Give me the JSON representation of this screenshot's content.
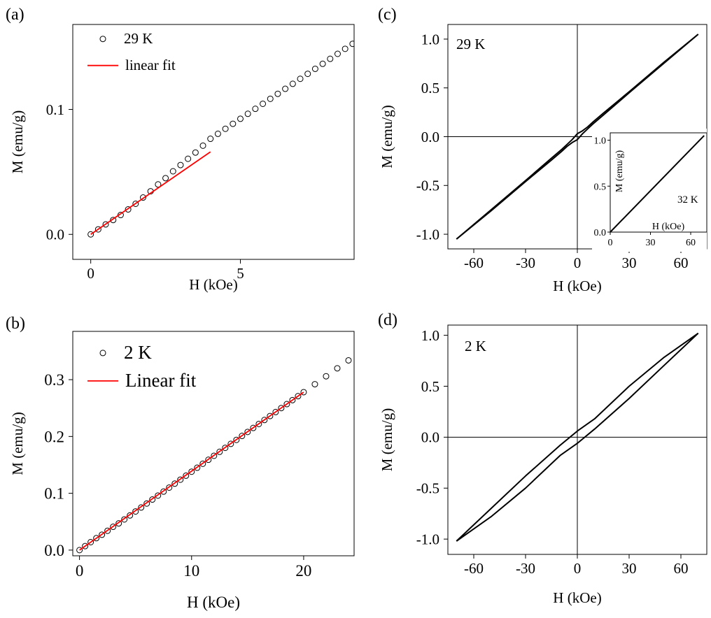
{
  "chart_data": [
    {
      "panel": "(a)",
      "type": "scatter",
      "xlabel": "H (kOe)",
      "ylabel": "M (emu/g)",
      "xlim": [
        -0.6,
        8.8
      ],
      "ylim": [
        -0.02,
        0.168
      ],
      "xticks": [
        0,
        5
      ],
      "yticks": [
        0.0,
        0.1
      ],
      "ytick_labels": [
        "0.0",
        "0.1"
      ],
      "legend_position": "top-left",
      "series": [
        {
          "name": "29 K",
          "kind": "markers",
          "marker": "open-circle",
          "color": "#000000",
          "x": [
            0.0,
            0.25,
            0.5,
            0.75,
            1.0,
            1.25,
            1.5,
            1.75,
            2.0,
            2.25,
            2.5,
            2.75,
            3.0,
            3.25,
            3.5,
            3.75,
            4.0,
            4.25,
            4.5,
            4.75,
            5.0,
            5.25,
            5.5,
            5.75,
            6.0,
            6.25,
            6.5,
            6.75,
            7.0,
            7.25,
            7.5,
            7.75,
            8.0,
            8.25,
            8.5,
            8.75
          ],
          "y": [
            0.0,
            0.004,
            0.008,
            0.0115,
            0.0155,
            0.02,
            0.0245,
            0.0295,
            0.0345,
            0.04,
            0.045,
            0.0505,
            0.0555,
            0.0605,
            0.0655,
            0.071,
            0.0765,
            0.0805,
            0.0845,
            0.0885,
            0.0925,
            0.0965,
            0.1005,
            0.1045,
            0.1085,
            0.1125,
            0.1165,
            0.1205,
            0.1245,
            0.1285,
            0.1325,
            0.1365,
            0.1405,
            0.1445,
            0.1485,
            0.1525
          ]
        },
        {
          "name": "linear fit",
          "kind": "line",
          "color": "#ff0000",
          "x": [
            0.0,
            4.0
          ],
          "y": [
            0.0,
            0.066
          ]
        }
      ]
    },
    {
      "panel": "(b)",
      "type": "scatter",
      "xlabel": "H (kOe)",
      "ylabel": "M (emu/g)",
      "xlim": [
        -0.6,
        24.5
      ],
      "ylim": [
        -0.01,
        0.385
      ],
      "xticks": [
        0,
        10,
        20
      ],
      "yticks": [
        0.0,
        0.1,
        0.2,
        0.3
      ],
      "ytick_labels": [
        "0.0",
        "0.1",
        "0.2",
        "0.3"
      ],
      "legend_position": "top-left",
      "series": [
        {
          "name": "2 K",
          "kind": "markers",
          "marker": "open-circle",
          "color": "#000000",
          "x": [
            0.0,
            0.5,
            1.0,
            1.5,
            2.0,
            2.5,
            3.0,
            3.5,
            4.0,
            4.5,
            5.0,
            5.5,
            6.0,
            6.5,
            7.0,
            7.5,
            8.0,
            8.5,
            9.0,
            9.5,
            10.0,
            10.5,
            11.0,
            11.5,
            12.0,
            12.5,
            13.0,
            13.5,
            14.0,
            14.5,
            15.0,
            15.5,
            16.0,
            16.5,
            17.0,
            17.5,
            18.0,
            18.5,
            19.0,
            19.5,
            20.0,
            21.0,
            22.0,
            23.0,
            24.0
          ],
          "y": [
            0.0,
            0.007,
            0.014,
            0.021,
            0.027,
            0.034,
            0.041,
            0.047,
            0.054,
            0.061,
            0.068,
            0.075,
            0.082,
            0.089,
            0.096,
            0.103,
            0.11,
            0.117,
            0.124,
            0.131,
            0.138,
            0.145,
            0.152,
            0.159,
            0.166,
            0.173,
            0.18,
            0.187,
            0.194,
            0.201,
            0.208,
            0.215,
            0.222,
            0.229,
            0.236,
            0.243,
            0.25,
            0.257,
            0.264,
            0.271,
            0.278,
            0.292,
            0.306,
            0.32,
            0.334
          ]
        },
        {
          "name": "Linear fit",
          "kind": "line",
          "color": "#ff0000",
          "x": [
            0.0,
            20.0
          ],
          "y": [
            0.0,
            0.278
          ]
        }
      ]
    },
    {
      "panel": "(c)",
      "type": "line",
      "xlabel": "H (kOe)",
      "ylabel": "M (emu/g)",
      "xlim": [
        -75,
        75
      ],
      "ylim": [
        -1.15,
        1.15
      ],
      "xticks": [
        -60,
        -30,
        0,
        30,
        60
      ],
      "yticks": [
        -1.0,
        -0.5,
        0.0,
        0.5,
        1.0
      ],
      "ytick_labels": [
        "-1.0",
        "-0.5",
        "0.0",
        "0.5",
        "1.0"
      ],
      "annotation": "29 K",
      "zero_lines": true,
      "series": [
        {
          "kind": "line",
          "color": "#000000",
          "x": [
            -70,
            -50,
            -30,
            -15,
            -9,
            -6,
            -3,
            0,
            3,
            6,
            9,
            15,
            30,
            50,
            70
          ],
          "y": [
            -1.05,
            -0.75,
            -0.45,
            -0.22,
            -0.13,
            -0.08,
            -0.03,
            0.03,
            0.06,
            0.1,
            0.15,
            0.24,
            0.46,
            0.76,
            1.05
          ]
        },
        {
          "kind": "line",
          "color": "#000000",
          "x": [
            70,
            50,
            30,
            15,
            9,
            6,
            3,
            0,
            -3,
            -6,
            -9,
            -15,
            -30,
            -50,
            -70
          ],
          "y": [
            1.05,
            0.75,
            0.45,
            0.22,
            0.13,
            0.08,
            0.03,
            -0.03,
            -0.06,
            -0.1,
            -0.15,
            -0.24,
            -0.46,
            -0.76,
            -1.05
          ]
        }
      ],
      "inset": {
        "xlabel": "H (kOe)",
        "ylabel": "M (emu/g)",
        "xlim": [
          0,
          72
        ],
        "ylim": [
          0,
          1.08
        ],
        "xticks": [
          0,
          30,
          60
        ],
        "yticks": [
          0.0,
          0.5,
          1.0
        ],
        "ytick_labels": [
          "0.0",
          "0.5",
          "1.0"
        ],
        "annotation": "32 K",
        "series": [
          {
            "kind": "line",
            "color": "#000000",
            "x": [
              0,
              70
            ],
            "y": [
              0.0,
              1.05
            ]
          }
        ]
      }
    },
    {
      "panel": "(d)",
      "type": "line",
      "xlabel": "H (kOe)",
      "ylabel": "M (emu/g)",
      "xlim": [
        -75,
        75
      ],
      "ylim": [
        -1.15,
        1.1
      ],
      "xticks": [
        -60,
        -30,
        0,
        30,
        60
      ],
      "yticks": [
        -1.0,
        -0.5,
        0.0,
        0.5,
        1.0
      ],
      "ytick_labels": [
        "-1.0",
        "-0.5",
        "0.0",
        "0.5",
        "1.0"
      ],
      "annotation": "2 K",
      "zero_lines": true,
      "series": [
        {
          "kind": "line",
          "color": "#000000",
          "x": [
            -70,
            -50,
            -30,
            -10,
            0,
            10,
            30,
            50,
            70
          ],
          "y": [
            -1.02,
            -0.78,
            -0.5,
            -0.18,
            -0.06,
            0.08,
            0.38,
            0.7,
            1.02
          ]
        },
        {
          "kind": "line",
          "color": "#000000",
          "x": [
            70,
            50,
            30,
            10,
            0,
            -10,
            -30,
            -50,
            -70
          ],
          "y": [
            1.02,
            0.78,
            0.5,
            0.18,
            0.06,
            -0.08,
            -0.38,
            -0.7,
            -1.02
          ]
        }
      ]
    }
  ]
}
